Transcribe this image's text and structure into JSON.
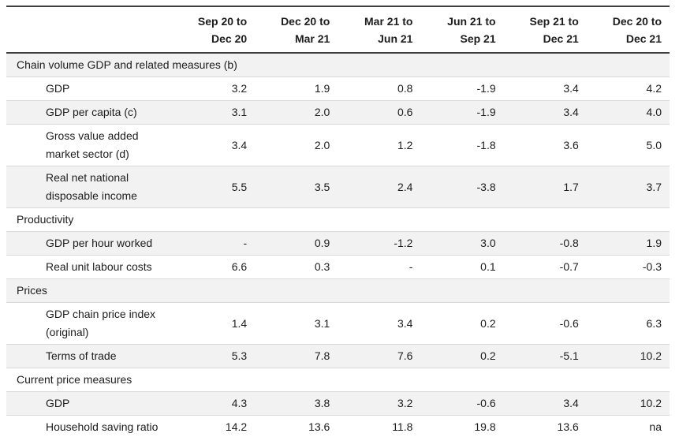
{
  "colors": {
    "heavy_border": "#3f3f3f",
    "row_border": "#d9d9d9",
    "shaded_row_bg": "#f2f2f2",
    "text": "#1d1d1d",
    "background": "#ffffff"
  },
  "chart_data": {
    "type": "table",
    "column_headers": [
      "Sep 20 to\nDec 20",
      "Dec 20 to\nMar 21",
      "Mar 21 to\nJun 21",
      "Jun 21 to\nSep 21",
      "Sep 21 to\nDec 21",
      "Dec 20 to\nDec 21"
    ],
    "missing_value_symbol": "-",
    "not_available_symbol": "na",
    "sections": [
      {
        "label": "Chain volume GDP and related measures (b)",
        "rows": [
          {
            "label": "GDP",
            "values": [
              "3.2",
              "1.9",
              "0.8",
              "-1.9",
              "3.4",
              "4.2"
            ]
          },
          {
            "label": "GDP per capita (c)",
            "values": [
              "3.1",
              "2.0",
              "0.6",
              "-1.9",
              "3.4",
              "4.0"
            ]
          },
          {
            "label": "Gross value added\nmarket sector (d)",
            "values": [
              "3.4",
              "2.0",
              "1.2",
              "-1.8",
              "3.6",
              "5.0"
            ]
          },
          {
            "label": "Real net national\ndisposable income",
            "values": [
              "5.5",
              "3.5",
              "2.4",
              "-3.8",
              "1.7",
              "3.7"
            ]
          }
        ]
      },
      {
        "label": "Productivity",
        "rows": [
          {
            "label": "GDP per hour worked",
            "values": [
              "-",
              "0.9",
              "-1.2",
              "3.0",
              "-0.8",
              "1.9"
            ]
          },
          {
            "label": "Real unit labour costs",
            "values": [
              "6.6",
              "0.3",
              "-",
              "0.1",
              "-0.7",
              "-0.3"
            ]
          }
        ]
      },
      {
        "label": "Prices",
        "rows": [
          {
            "label": "GDP chain price index\n(original)",
            "values": [
              "1.4",
              "3.1",
              "3.4",
              "0.2",
              "-0.6",
              "6.3"
            ]
          },
          {
            "label": "Terms of trade",
            "values": [
              "5.3",
              "7.8",
              "7.6",
              "0.2",
              "-5.1",
              "10.2"
            ]
          }
        ]
      },
      {
        "label": "Current price measures",
        "rows": [
          {
            "label": "GDP",
            "values": [
              "4.3",
              "3.8",
              "3.2",
              "-0.6",
              "3.4",
              "10.2"
            ]
          },
          {
            "label": "Household saving ratio",
            "values": [
              "14.2",
              "13.6",
              "11.8",
              "19.8",
              "13.6",
              "na"
            ]
          }
        ]
      }
    ]
  }
}
